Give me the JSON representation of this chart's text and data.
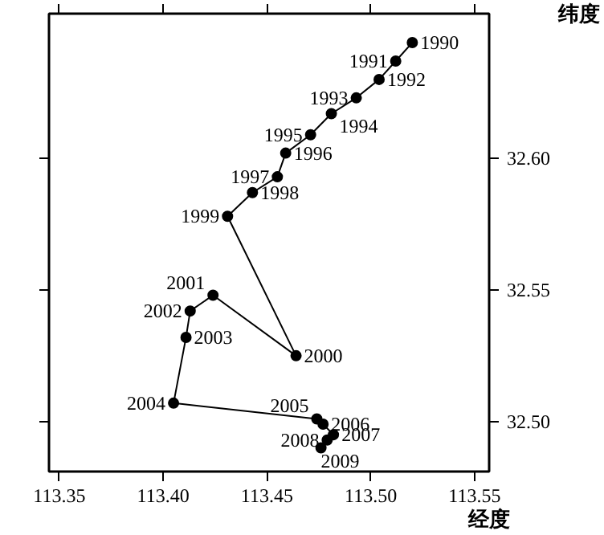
{
  "chart_data": {
    "type": "line",
    "xlabel": "经度",
    "ylabel": "纬度",
    "xlim": [
      113.345,
      113.557
    ],
    "ylim": [
      32.481,
      32.655
    ],
    "xticks": [
      {
        "value": 113.35,
        "label": "113.35"
      },
      {
        "value": 113.4,
        "label": "113.40"
      },
      {
        "value": 113.45,
        "label": "113.45"
      },
      {
        "value": 113.5,
        "label": "113.50"
      },
      {
        "value": 113.55,
        "label": "113.55"
      }
    ],
    "yticks": [
      {
        "value": 32.5,
        "label": "32.50"
      },
      {
        "value": 32.55,
        "label": "32.55"
      },
      {
        "value": 32.6,
        "label": "32.60"
      }
    ],
    "grid": false,
    "marker": "circle",
    "line_style": "solid",
    "series": [
      {
        "color": "#000000",
        "x": [
          113.52,
          113.512,
          113.504,
          113.493,
          113.481,
          113.471,
          113.459,
          113.455,
          113.443,
          113.431,
          113.464,
          113.424,
          113.413,
          113.411,
          113.405,
          113.474,
          113.477,
          113.482,
          113.479,
          113.476
        ],
        "values": [
          32.644,
          32.637,
          32.63,
          32.623,
          32.617,
          32.609,
          32.602,
          32.593,
          32.587,
          32.578,
          32.525,
          32.548,
          32.542,
          32.532,
          32.507,
          32.501,
          32.499,
          32.495,
          32.493,
          32.49
        ]
      }
    ],
    "annotations": [
      {
        "text": "1990",
        "x": 113.52,
        "y": 32.644
      },
      {
        "text": "1991",
        "x": 113.512,
        "y": 32.637
      },
      {
        "text": "1992",
        "x": 113.504,
        "y": 32.63
      },
      {
        "text": "1993",
        "x": 113.493,
        "y": 32.623
      },
      {
        "text": "1994",
        "x": 113.481,
        "y": 32.617
      },
      {
        "text": "1995",
        "x": 113.471,
        "y": 32.609
      },
      {
        "text": "1996",
        "x": 113.459,
        "y": 32.602
      },
      {
        "text": "1997",
        "x": 113.455,
        "y": 32.593
      },
      {
        "text": "1998",
        "x": 113.443,
        "y": 32.587
      },
      {
        "text": "1999",
        "x": 113.431,
        "y": 32.578
      },
      {
        "text": "2000",
        "x": 113.464,
        "y": 32.525
      },
      {
        "text": "2001",
        "x": 113.424,
        "y": 32.548
      },
      {
        "text": "2002",
        "x": 113.413,
        "y": 32.542
      },
      {
        "text": "2003",
        "x": 113.411,
        "y": 32.532
      },
      {
        "text": "2004",
        "x": 113.405,
        "y": 32.507
      },
      {
        "text": "2005",
        "x": 113.474,
        "y": 32.501
      },
      {
        "text": "2006",
        "x": 113.477,
        "y": 32.499
      },
      {
        "text": "2007",
        "x": 113.482,
        "y": 32.495
      },
      {
        "text": "2008",
        "x": 113.479,
        "y": 32.493
      },
      {
        "text": "2009",
        "x": 113.476,
        "y": 32.49
      }
    ]
  }
}
